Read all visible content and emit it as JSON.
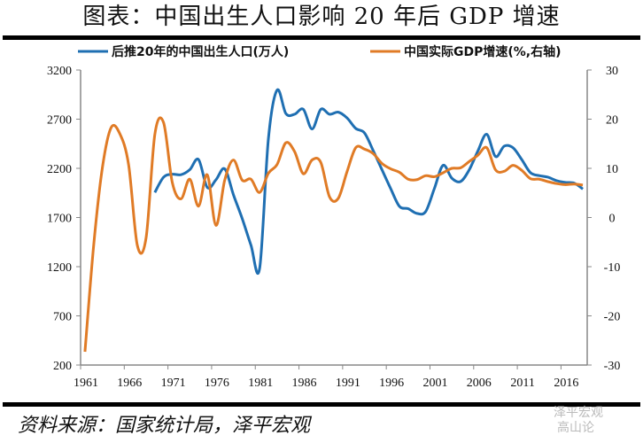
{
  "title": "图表：中国出生人口影响 20 年后 GDP 增速",
  "source": "资料来源：国家统计局，泽平宏观",
  "watermark": [
    "泽平宏观",
    "高山论"
  ],
  "chart_data": {
    "type": "line",
    "title": "图表：中国出生人口影响 20 年后 GDP 增速",
    "x": [
      1961,
      1962,
      1963,
      1964,
      1965,
      1966,
      1967,
      1968,
      1969,
      1970,
      1971,
      1972,
      1973,
      1974,
      1975,
      1976,
      1977,
      1978,
      1979,
      1980,
      1981,
      1982,
      1983,
      1984,
      1985,
      1986,
      1987,
      1988,
      1989,
      1990,
      1991,
      1992,
      1993,
      1994,
      1995,
      1996,
      1997,
      1998,
      1999,
      2000,
      2001,
      2002,
      2003,
      2004,
      2005,
      2006,
      2007,
      2008,
      2009,
      2010,
      2011,
      2012,
      2013,
      2014,
      2015,
      2016,
      2017,
      2018
    ],
    "x_tick_labels": [
      "1961",
      "1966",
      "1971",
      "1976",
      "1981",
      "1986",
      "1991",
      "1996",
      "2001",
      "2006",
      "2011",
      "2016"
    ],
    "y_left": {
      "range": [
        200,
        3200
      ],
      "ticks": [
        "200",
        "700",
        "1200",
        "1700",
        "2200",
        "2700",
        "3200"
      ]
    },
    "y_right": {
      "range": [
        -30,
        30
      ],
      "ticks": [
        "-30",
        "-20",
        "-10",
        "0",
        "10",
        "20",
        "30"
      ]
    },
    "grid": false,
    "legend_placement": "top",
    "series": [
      {
        "name": "后推20年的中国出生人口(万人)",
        "axis": "left",
        "color": "#1f6fb2",
        "values": [
          null,
          null,
          null,
          null,
          null,
          null,
          null,
          null,
          1955,
          2110,
          2140,
          2135,
          2186,
          2290,
          2006,
          2084,
          2195,
          1931,
          1690,
          1420,
          1184,
          2500,
          2996,
          2757,
          2750,
          2800,
          2600,
          2800,
          2750,
          2771,
          2713,
          2606,
          2560,
          2380,
          2186,
          1994,
          1814,
          1790,
          1742,
          1760,
          1994,
          2231,
          2100,
          2066,
          2186,
          2380,
          2546,
          2320,
          2426,
          2410,
          2290,
          2156,
          2126,
          2110,
          2075,
          2057,
          2050,
          1990
        ]
      },
      {
        "name": "中国实际GDP增速(%,右轴)",
        "axis": "right",
        "color": "#e07b26",
        "values": [
          -27.3,
          -5.6,
          10.2,
          18.3,
          17.0,
          10.7,
          -5.7,
          -4.1,
          16.9,
          19.3,
          7.1,
          3.8,
          7.8,
          2.3,
          8.7,
          -1.6,
          7.6,
          11.7,
          7.6,
          7.8,
          5.1,
          9.0,
          10.8,
          15.2,
          13.4,
          8.9,
          11.7,
          11.2,
          4.2,
          3.9,
          9.3,
          14.2,
          13.9,
          13.0,
          11.0,
          9.9,
          9.2,
          7.8,
          7.7,
          8.5,
          8.3,
          9.1,
          10.0,
          10.1,
          11.4,
          12.7,
          14.2,
          9.7,
          9.4,
          10.6,
          9.6,
          7.9,
          7.8,
          7.3,
          6.9,
          6.7,
          6.8,
          6.6
        ]
      }
    ]
  }
}
